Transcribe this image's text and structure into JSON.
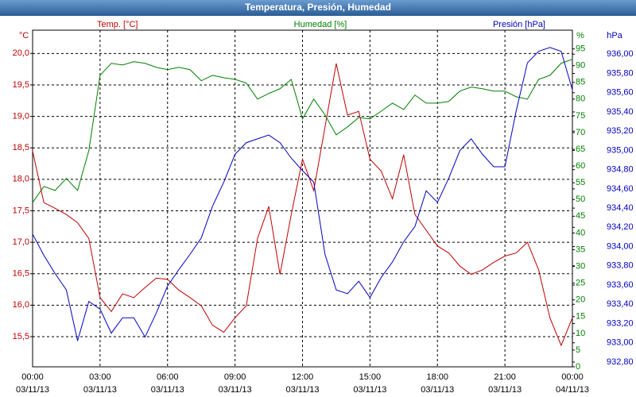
{
  "chart_data": {
    "type": "line",
    "title": "Temperatura, Presión, Humedad",
    "unit_labels": {
      "y": "°C",
      "y2": "%",
      "y3": "hPa"
    },
    "grid": true,
    "x": [
      0,
      0.5,
      1,
      1.5,
      2,
      2.5,
      3,
      3.5,
      4,
      4.5,
      5,
      5.5,
      6,
      6.5,
      7,
      7.5,
      8,
      8.5,
      9,
      9.5,
      10,
      10.5,
      11,
      11.5,
      12,
      12.5,
      13,
      13.5,
      14,
      14.5,
      15,
      15.5,
      16,
      16.5,
      17,
      17.5,
      18,
      18.5,
      19,
      19.5,
      20,
      20.5,
      21,
      21.5,
      22,
      22.5,
      23,
      23.5,
      24
    ],
    "xlim": [
      0,
      24
    ],
    "xticks": [
      {
        "value": 0,
        "label": "00:00",
        "date": "03/11/13"
      },
      {
        "value": 3,
        "label": "03:00",
        "date": "03/11/13"
      },
      {
        "value": 6,
        "label": "06:00",
        "date": "03/11/13"
      },
      {
        "value": 9,
        "label": "09:00",
        "date": "03/11/13"
      },
      {
        "value": 12,
        "label": "12:00",
        "date": "03/11/13"
      },
      {
        "value": 15,
        "label": "15:00",
        "date": "03/11/13"
      },
      {
        "value": 18,
        "label": "18:00",
        "date": "03/11/13"
      },
      {
        "value": 21,
        "label": "21:00",
        "date": "03/11/13"
      },
      {
        "value": 24,
        "label": "00:00",
        "date": "04/11/13"
      }
    ],
    "ylim": [
      15.02,
      20.37
    ],
    "yticks": [
      {
        "value": 15.5,
        "label": "15,5"
      },
      {
        "value": 16.0,
        "label": "16,0"
      },
      {
        "value": 16.5,
        "label": "16,5"
      },
      {
        "value": 17.0,
        "label": "17,0"
      },
      {
        "value": 17.5,
        "label": "17,5"
      },
      {
        "value": 18.0,
        "label": "18,0"
      },
      {
        "value": 18.5,
        "label": "18,5"
      },
      {
        "value": 19.0,
        "label": "19,0"
      },
      {
        "value": 19.5,
        "label": "19,5"
      },
      {
        "value": 20.0,
        "label": "20,0"
      }
    ],
    "y2lim": [
      0,
      100.6
    ],
    "y2ticks": [
      0,
      5,
      10,
      15,
      20,
      25,
      30,
      35,
      40,
      45,
      50,
      55,
      60,
      65,
      70,
      75,
      80,
      85,
      90,
      95
    ],
    "y3lim": [
      932.75,
      936.25
    ],
    "y3ticks": [
      {
        "value": 932.8,
        "label": "932,80"
      },
      {
        "value": 933.0,
        "label": "933,00"
      },
      {
        "value": 933.2,
        "label": "933,20"
      },
      {
        "value": 933.4,
        "label": "933,40"
      },
      {
        "value": 933.6,
        "label": "933,60"
      },
      {
        "value": 933.8,
        "label": "933,80"
      },
      {
        "value": 934.0,
        "label": "934,00"
      },
      {
        "value": 934.2,
        "label": "934,20"
      },
      {
        "value": 934.4,
        "label": "934,40"
      },
      {
        "value": 934.6,
        "label": "934,60"
      },
      {
        "value": 934.8,
        "label": "934,80"
      },
      {
        "value": 935.0,
        "label": "935,00"
      },
      {
        "value": 935.2,
        "label": "935,20"
      },
      {
        "value": 935.4,
        "label": "935,40"
      },
      {
        "value": 935.6,
        "label": "935,60"
      },
      {
        "value": 935.8,
        "label": "935,80"
      },
      {
        "value": 936.0,
        "label": "936,00"
      }
    ],
    "series": [
      {
        "name": "Temp. [°C]",
        "color": "#c00000",
        "axis": "y",
        "values": [
          18.45,
          17.63,
          17.54,
          17.44,
          17.31,
          17.06,
          16.12,
          15.9,
          16.18,
          16.12,
          16.28,
          16.43,
          16.41,
          16.24,
          16.12,
          15.99,
          15.68,
          15.57,
          15.8,
          15.99,
          17.06,
          17.57,
          16.49,
          17.44,
          18.32,
          17.82,
          18.83,
          19.84,
          19.02,
          19.08,
          18.32,
          18.13,
          17.69,
          18.39,
          17.44,
          17.19,
          16.94,
          16.83,
          16.62,
          16.49,
          16.56,
          16.68,
          16.78,
          16.83,
          17.0,
          16.56,
          15.8,
          15.36,
          15.8
        ]
      },
      {
        "name": "Humedad [%]",
        "color": "#008000",
        "axis": "y2",
        "values": [
          49.1,
          53.9,
          52.7,
          56.3,
          52.7,
          64.6,
          87.1,
          90.7,
          90.2,
          91.2,
          90.7,
          89.5,
          88.8,
          89.5,
          88.8,
          85.5,
          87.1,
          86.4,
          85.9,
          84.8,
          80.0,
          81.7,
          83.1,
          85.9,
          74.1,
          80.0,
          75.3,
          69.3,
          71.7,
          74.5,
          74.1,
          76.4,
          78.8,
          76.9,
          81.2,
          78.8,
          78.8,
          79.3,
          82.4,
          83.6,
          83.1,
          82.4,
          82.4,
          80.7,
          80.0,
          85.9,
          87.1,
          90.7,
          91.9
        ]
      },
      {
        "name": "Presión [hPa]",
        "color": "#0000c0",
        "axis": "y3",
        "values": [
          934.13,
          933.91,
          933.72,
          933.55,
          933.02,
          933.43,
          933.35,
          933.1,
          933.26,
          933.26,
          933.06,
          933.31,
          933.59,
          933.76,
          933.92,
          934.09,
          934.42,
          934.67,
          934.96,
          935.08,
          935.12,
          935.16,
          935.08,
          934.92,
          934.79,
          934.67,
          933.92,
          933.55,
          933.51,
          933.64,
          933.47,
          933.68,
          933.84,
          934.05,
          934.21,
          934.58,
          934.46,
          934.71,
          935.0,
          935.12,
          934.96,
          934.83,
          934.83,
          935.41,
          935.91,
          936.03,
          936.07,
          936.03,
          935.63
        ]
      }
    ]
  }
}
